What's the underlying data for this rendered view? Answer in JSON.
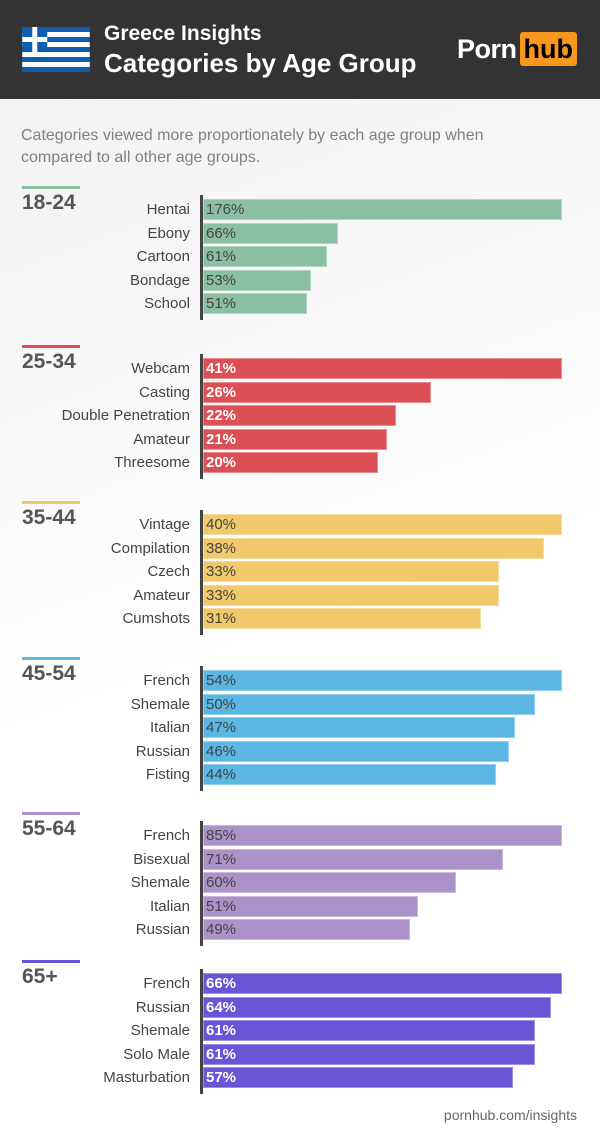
{
  "header": {
    "title": "Greece Insights",
    "subtitle": "Categories by Age Group",
    "logo_part1": "Porn",
    "logo_part2": "hub",
    "flag_icon": "greece-flag-icon",
    "brand_color": "#f7971d"
  },
  "description": "Categories viewed more proportionately by each age group when compared to all other age groups.",
  "footer": "pornhub.com/insights",
  "chart_data": [
    {
      "type": "bar",
      "orientation": "horizontal",
      "title": "18-24",
      "color": "#8bbfa4",
      "value_text_color": "#444444",
      "categories": [
        "Hentai",
        "Ebony",
        "Cartoon",
        "Bondage",
        "School"
      ],
      "values": [
        176,
        66,
        61,
        53,
        51
      ],
      "labels": [
        "176%",
        "66%",
        "61%",
        "53%",
        "51%"
      ]
    },
    {
      "type": "bar",
      "orientation": "horizontal",
      "title": "25-34",
      "color": "#dc5055",
      "value_text_color": "#ffffff",
      "categories": [
        "Webcam",
        "Casting",
        "Double Penetration",
        "Amateur",
        "Threesome"
      ],
      "values": [
        41,
        26,
        22,
        21,
        20
      ],
      "labels": [
        "41%",
        "26%",
        "22%",
        "21%",
        "20%"
      ]
    },
    {
      "type": "bar",
      "orientation": "horizontal",
      "title": "35-44",
      "color": "#f0c96a",
      "value_text_color": "#444444",
      "categories": [
        "Vintage",
        "Compilation",
        "Czech",
        "Amateur",
        "Cumshots"
      ],
      "values": [
        40,
        38,
        33,
        33,
        31
      ],
      "labels": [
        "40%",
        "38%",
        "33%",
        "33%",
        "31%"
      ]
    },
    {
      "type": "bar",
      "orientation": "horizontal",
      "title": "45-54",
      "color": "#5cb6e4",
      "value_text_color": "#444444",
      "categories": [
        "French",
        "Shemale",
        "Italian",
        "Russian",
        "Fisting"
      ],
      "values": [
        54,
        50,
        47,
        46,
        44
      ],
      "labels": [
        "54%",
        "50%",
        "47%",
        "46%",
        "44%"
      ]
    },
    {
      "type": "bar",
      "orientation": "horizontal",
      "title": "55-64",
      "color": "#ab92c8",
      "value_text_color": "#444444",
      "categories": [
        "French",
        "Bisexual",
        "Shemale",
        "Italian",
        "Russian"
      ],
      "values": [
        85,
        71,
        60,
        51,
        49
      ],
      "labels": [
        "85%",
        "71%",
        "60%",
        "51%",
        "49%"
      ]
    },
    {
      "type": "bar",
      "orientation": "horizontal",
      "title": "65+",
      "color": "#6c54d6",
      "value_text_color": "#ffffff",
      "categories": [
        "French",
        "Russian",
        "Shemale",
        "Solo Male",
        "Masturbation"
      ],
      "values": [
        66,
        64,
        61,
        61,
        57
      ],
      "labels": [
        "66%",
        "64%",
        "61%",
        "61%",
        "57%"
      ]
    }
  ]
}
